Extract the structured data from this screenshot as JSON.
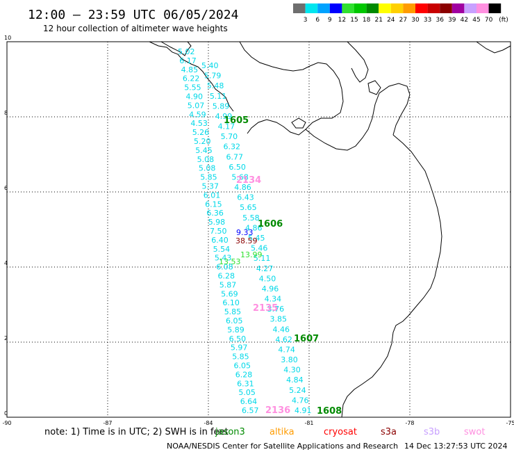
{
  "header": {
    "title": "12:00 – 23:59 UTC 06/05/2024",
    "subtitle": "12 hour collection of altimeter wave heights"
  },
  "colorbar": {
    "unit": "(ft)",
    "bins": [
      {
        "label": "3",
        "color": "#6e6e6e"
      },
      {
        "label": "6",
        "color": "#00e5ee"
      },
      {
        "label": "9",
        "color": "#00a2ff"
      },
      {
        "label": "12",
        "color": "#0000ff"
      },
      {
        "label": "15",
        "color": "#30e030"
      },
      {
        "label": "18",
        "color": "#00c800"
      },
      {
        "label": "21",
        "color": "#008a00"
      },
      {
        "label": "24",
        "color": "#ffff00"
      },
      {
        "label": "27",
        "color": "#ffd000"
      },
      {
        "label": "30",
        "color": "#ff9c00"
      },
      {
        "label": "33",
        "color": "#ff0000"
      },
      {
        "label": "36",
        "color": "#c80000"
      },
      {
        "label": "39",
        "color": "#8b0000"
      },
      {
        "label": "42",
        "color": "#a000a0"
      },
      {
        "label": "45",
        "color": "#c8a0ff"
      },
      {
        "label": "70",
        "color": "#ff90e0"
      },
      {
        "label": "",
        "color": "#000000"
      }
    ]
  },
  "axes": {
    "x_ticks": [
      "-90",
      "-87",
      "-84",
      "-81",
      "-78",
      "-75"
    ],
    "y_ticks": [
      "0",
      "2",
      "4",
      "6",
      "8",
      "10"
    ]
  },
  "track_left": {
    "color": "#00d8e8",
    "labels": [
      "5.02",
      "6.17",
      "4.85",
      "6.22",
      "5.55",
      "4.90",
      "5.07",
      "4.59",
      "4.53",
      "5.26",
      "5.20",
      "5.45",
      "5.08",
      "5.08",
      "5.85",
      "5.37",
      "6.01",
      "6.15",
      "6.36",
      "5.98",
      "7.50",
      "6.40",
      "5.54",
      "5.43",
      "6.08",
      "6.28",
      "5.87",
      "5.69",
      "6.10",
      "5.85",
      "6.05",
      "5.89",
      "6.50",
      "5.97",
      "5.85",
      "6.05",
      "6.28",
      "6.31",
      "5.05",
      "6.64",
      "6.57"
    ]
  },
  "track_right": {
    "color": "#00d8e8",
    "labels": [
      "5.40",
      "5.79",
      "5.48",
      "5.11",
      "5.89",
      "4.99",
      "4.17",
      "5.70",
      "6.32",
      "6.77",
      "6.50",
      "5.68",
      "4.86",
      "6.43",
      "5.65",
      "5.58",
      "4.86",
      "5.45",
      "5.46",
      "5.11",
      "4.27",
      "4.50",
      "4.96",
      "4.34",
      "3.76",
      "3.85",
      "4.46",
      "4.62",
      "4.74",
      "3.80",
      "4.30",
      "4.84",
      "5.24",
      "4.76",
      "4.91"
    ]
  },
  "special_values": [
    {
      "label": "9.33",
      "color": "#0000ff"
    },
    {
      "label": "38.59",
      "color": "#8b0000"
    },
    {
      "label": "13.99",
      "color": "#30e030"
    },
    {
      "label": "13.53",
      "color": "#30e030"
    }
  ],
  "pass_times": [
    {
      "label": "1605",
      "color": "#008a00"
    },
    {
      "label": "2134",
      "color": "#ff90e0"
    },
    {
      "label": "1606",
      "color": "#008a00"
    },
    {
      "label": "2135",
      "color": "#ff90e0"
    },
    {
      "label": "1607",
      "color": "#008a00"
    },
    {
      "label": "2136",
      "color": "#ff90e0"
    },
    {
      "label": "1608",
      "color": "#008a00"
    }
  ],
  "footer": {
    "note": "note:  1) Time is in UTC; 2) SWH is in feet",
    "satellites": [
      {
        "name": "jason3",
        "color": "#008a00"
      },
      {
        "name": "altika",
        "color": "#ff9c00"
      },
      {
        "name": "cryosat",
        "color": "#ff0000"
      },
      {
        "name": "s3a",
        "color": "#8b0000"
      },
      {
        "name": "s3b",
        "color": "#c8a0ff"
      },
      {
        "name": "swot",
        "color": "#ff90e0"
      }
    ],
    "credit": "NOAA/NESDIS Center for Satellite Applications and Research",
    "timestamp": "14 Dec 13:27:53 UTC 2024"
  }
}
